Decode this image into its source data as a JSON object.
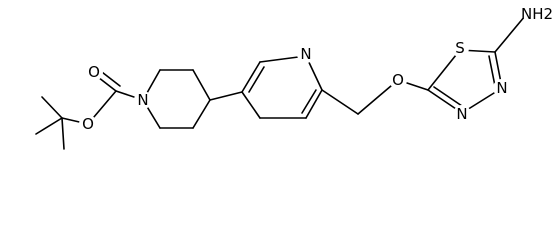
{
  "atoms": [
    {
      "label": "O"
    },
    {
      "label": "O"
    },
    {
      "label": "N"
    },
    {
      "label": "N"
    },
    {
      "label": "O"
    },
    {
      "label": "S"
    },
    {
      "label": "NH2"
    },
    {
      "label": "N"
    },
    {
      "label": "N"
    }
  ]
}
